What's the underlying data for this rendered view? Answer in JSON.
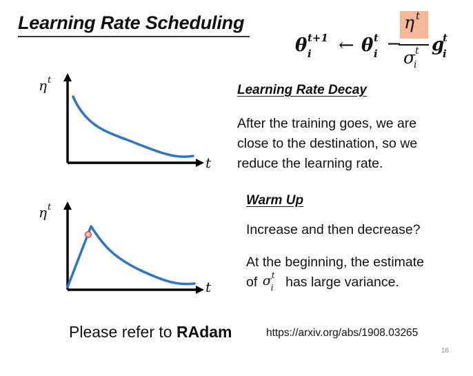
{
  "slide": {
    "title": "Learning Rate Scheduling",
    "formula": {
      "theta": "θ",
      "arrow": "←",
      "minus": "−",
      "eta": "η",
      "sigma": "σ",
      "g": "g",
      "i": "i",
      "t": "t",
      "t_plus_1": "t+1",
      "highlight_color": "#f5b99a"
    },
    "graphs": {
      "y_axis_label": "η",
      "y_axis_sup": "t",
      "x_axis_label": "t",
      "curve_color": "#2e75c8"
    },
    "decay": {
      "heading": "Learning Rate Decay",
      "lines": [
        "After the training goes, we are",
        "close to the destination, so we",
        "reduce the learning rate."
      ]
    },
    "warmup": {
      "heading": "Warm Up",
      "question": "Increase and then decrease?",
      "line1": "At the beginning, the estimate",
      "line2_prefix": "of",
      "sigma": "σ",
      "sub": "i",
      "sup": "t",
      "line2_suffix": "has large variance."
    },
    "refer": {
      "prefix": "Please refer to",
      "bold": "RAdam"
    },
    "url": "https://arxiv.org/abs/1908.03265",
    "page_number": "16"
  }
}
